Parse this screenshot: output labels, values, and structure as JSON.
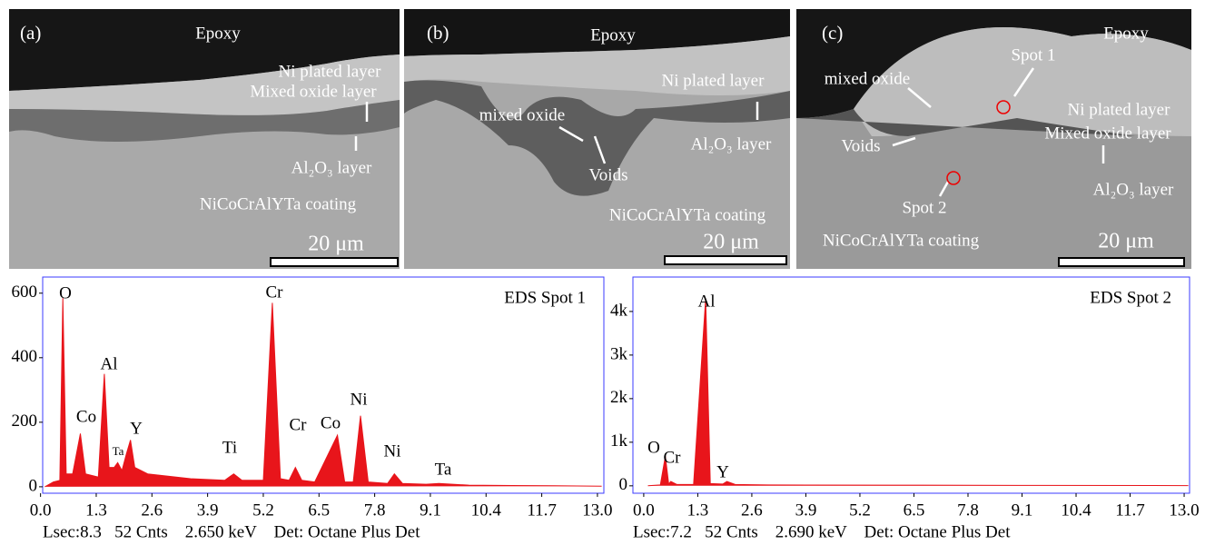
{
  "panels": [
    {
      "label": "(a)",
      "annotations": [
        "Epoxy",
        "Ni plated layer",
        "Mixed oxide layer",
        "Al₂O₃ layer",
        "NiCoCrAlYTa coating"
      ],
      "scale": "20 μm"
    },
    {
      "label": "(b)",
      "annotations": [
        "Epoxy",
        "Ni plated layer",
        "mixed oxide",
        "Voids",
        "Al₂O₃ layer",
        "NiCoCrAlYTa coating"
      ],
      "scale": "20 μm"
    },
    {
      "label": "(c)",
      "annotations": [
        "Epoxy",
        "Spot 1",
        "mixed oxide",
        "Ni plated layer",
        "Mixed oxide layer",
        "Voids",
        "Al₂O₃ layer",
        "Spot 2",
        "NiCoCrAlYTa coating"
      ],
      "scale": "20 μm"
    }
  ],
  "chart_data": [
    {
      "type": "line",
      "title": "EDS Spot 1",
      "footer": "Lsec:8.3   52 Cnts    2.650 keV    Det: Octane Plus Det",
      "peak_labels": [
        "O",
        "Co",
        "Al",
        "Ta",
        "Y",
        "Ti",
        "Cr",
        "Cr",
        "Co",
        "Ni",
        "Ni",
        "Ta"
      ],
      "xlim": [
        0.05,
        13.15
      ],
      "ylim": [
        -20,
        650
      ],
      "xticks": [
        {
          "value": 0,
          "label": "0.0"
        },
        1.3,
        2.6,
        3.9,
        5.2,
        6.5,
        7.8,
        9.1,
        10.4,
        11.7,
        {
          "value": 13,
          "label": "13.0"
        }
      ],
      "yticks": [
        0,
        200,
        400,
        600
      ],
      "series": [
        {
          "color": "#e8151b",
          "x": [
            0.1,
            0.3,
            0.45,
            0.52,
            0.6,
            0.75,
            0.93,
            1.05,
            1.35,
            1.49,
            1.6,
            1.72,
            1.8,
            1.9,
            2.0,
            2.1,
            2.2,
            2.5,
            3.5,
            4.3,
            4.51,
            4.7,
            5.2,
            5.41,
            5.6,
            5.8,
            5.95,
            6.1,
            6.4,
            6.93,
            7.1,
            7.3,
            7.47,
            7.65,
            8.1,
            8.26,
            8.45,
            9.0,
            9.3,
            10.0,
            11.0,
            12.0,
            13.1
          ],
          "values": [
            0,
            15,
            20,
            585,
            40,
            40,
            165,
            40,
            30,
            350,
            60,
            60,
            75,
            50,
            100,
            145,
            60,
            40,
            25,
            20,
            40,
            20,
            20,
            570,
            25,
            20,
            60,
            20,
            15,
            160,
            15,
            15,
            220,
            15,
            10,
            40,
            10,
            8,
            10,
            5,
            4,
            3,
            2
          ]
        }
      ]
    },
    {
      "type": "line",
      "title": "EDS Spot 2",
      "footer": "Lsec:7.2   52 Cnts    2.690 keV    Det: Octane Plus Det",
      "peak_labels": [
        "O",
        "Cr",
        "Al",
        "Y"
      ],
      "xlim": [
        -0.26,
        13.13
      ],
      "ylim": [
        -170,
        4790
      ],
      "xticks": [
        {
          "value": 0,
          "label": "0.0"
        },
        1.3,
        2.6,
        3.9,
        5.2,
        6.5,
        7.8,
        9.1,
        10.4,
        11.7,
        {
          "value": 13,
          "label": "13.0"
        }
      ],
      "yticks": [
        0,
        {
          "value": 1000,
          "label": "1k"
        },
        {
          "value": 2000,
          "label": "2k"
        },
        {
          "value": 3000,
          "label": "3k"
        },
        {
          "value": 4000,
          "label": "4k"
        }
      ],
      "series": [
        {
          "color": "#e8151b",
          "x": [
            0.1,
            0.4,
            0.52,
            0.6,
            0.65,
            0.8,
            1.2,
            1.49,
            1.6,
            1.9,
            2.0,
            2.2,
            3.0,
            6.0,
            9.0,
            13.1
          ],
          "values": [
            0,
            20,
            680,
            40,
            100,
            30,
            30,
            4300,
            50,
            40,
            100,
            30,
            20,
            15,
            10,
            5
          ]
        }
      ]
    }
  ]
}
